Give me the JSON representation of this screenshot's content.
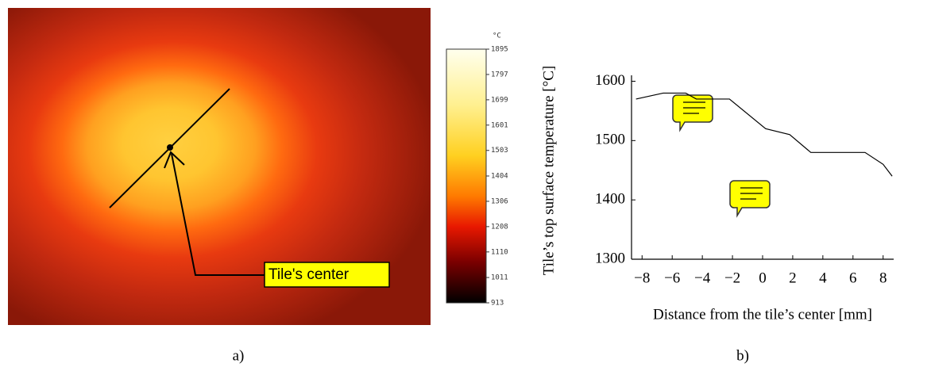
{
  "chart_data": [
    {
      "type": "image",
      "annotation": "Tile's center",
      "caption": "a)",
      "colorbar_unit": "°C",
      "colorbar_lim": [
        913,
        1895
      ],
      "colorbar_ticks": [
        913,
        1011,
        1110,
        1208,
        1306,
        1404,
        1503,
        1601,
        1699,
        1797,
        1895
      ]
    },
    {
      "type": "line",
      "caption": "b)",
      "xlabel": "Distance from the tile’s center [mm]",
      "ylabel": "Tile’s top surface temperature [°C]",
      "x": [
        -8.4,
        -6.6,
        -5.1,
        -4.4,
        -2.2,
        0.2,
        1.8,
        3.2,
        6.8,
        8.0,
        8.6
      ],
      "series": [
        {
          "color": "#000000",
          "values": [
            1570,
            1580,
            1580,
            1570,
            1570,
            1520,
            1510,
            1480,
            1480,
            1460,
            1440
          ]
        }
      ],
      "xlim": [
        -8.7,
        8.7
      ],
      "ylim": [
        1300,
        1610
      ],
      "xticks": [
        {
          "value": -8,
          "label": "−8"
        },
        {
          "value": -6,
          "label": "−6"
        },
        {
          "value": -4,
          "label": "−4"
        },
        {
          "value": -2,
          "label": "−2"
        },
        0,
        2,
        4,
        6,
        8
      ],
      "yticks": [
        1300,
        1400,
        1500,
        1600
      ]
    }
  ]
}
